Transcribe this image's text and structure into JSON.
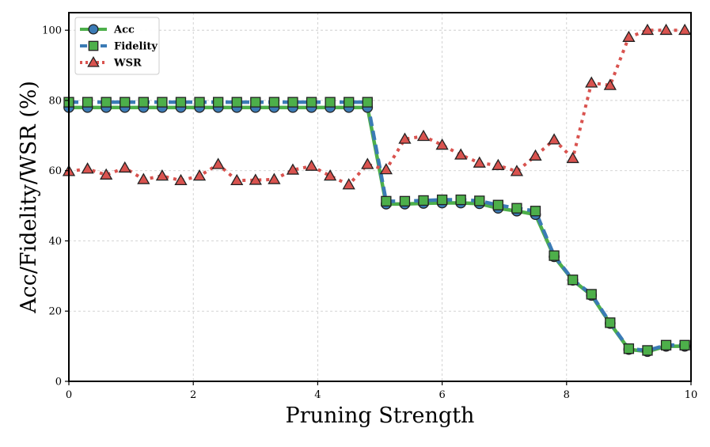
{
  "chart_data": {
    "type": "line",
    "title": "",
    "xlabel": "Pruning Strength",
    "ylabel": "Acc/Fidelity/WSR (%)",
    "xlim": [
      0,
      10
    ],
    "ylim": [
      0,
      105
    ],
    "xticks": [
      0,
      2,
      4,
      6,
      8,
      10
    ],
    "yticks": [
      0,
      20,
      40,
      60,
      80,
      100
    ],
    "grid": true,
    "legend_position": "top-left",
    "x": [
      0,
      0.3,
      0.6,
      0.9,
      1.2,
      1.5,
      1.8,
      2.1,
      2.4,
      2.7,
      3.0,
      3.3,
      3.6,
      3.9,
      4.2,
      4.5,
      4.8,
      5.1,
      5.4,
      5.7,
      6.0,
      6.3,
      6.6,
      6.9,
      7.2,
      7.5,
      7.8,
      8.1,
      8.4,
      8.7,
      9.0,
      9.3,
      9.6,
      9.9
    ],
    "series": [
      {
        "name": "Acc",
        "color": "#4daf4a",
        "marker": "circle",
        "marker_color": "#3b7bb5",
        "line_style": "solid",
        "values": [
          78,
          78,
          78,
          78,
          78,
          78,
          78,
          78,
          78,
          78,
          78,
          78,
          78,
          78,
          78,
          78,
          78,
          50.5,
          50.5,
          50.7,
          50.8,
          50.8,
          50.6,
          49.3,
          48.5,
          47.5,
          35.5,
          28.8,
          24.5,
          16.5,
          9.1,
          8.5,
          10,
          10
        ]
      },
      {
        "name": "Fidelity",
        "color": "#3b7bb5",
        "marker": "square",
        "marker_color": "#4daf4a",
        "line_style": "dashed",
        "values": [
          79.5,
          79.5,
          79.5,
          79.5,
          79.5,
          79.5,
          79.5,
          79.5,
          79.5,
          79.5,
          79.5,
          79.5,
          79.5,
          79.5,
          79.5,
          79.5,
          79.5,
          51.3,
          51.3,
          51.5,
          51.7,
          51.7,
          51.4,
          50.2,
          49.3,
          48.5,
          35.8,
          28.9,
          24.8,
          16.7,
          9.3,
          8.8,
          10.3,
          10.3
        ]
      },
      {
        "name": "WSR",
        "color": "#d9534f",
        "marker": "triangle",
        "marker_color": "#d9534f",
        "line_style": "dotted",
        "values": [
          59.8,
          60.5,
          58.8,
          60.8,
          57.5,
          58.5,
          57.2,
          58.5,
          61.8,
          57.2,
          57.3,
          57.5,
          60.2,
          61.3,
          58.5,
          56,
          61.8,
          60.3,
          69,
          69.8,
          67.3,
          64.5,
          62.2,
          61.5,
          59.8,
          64.2,
          68.8,
          63.5,
          85,
          84.3,
          98,
          100,
          100,
          100
        ]
      }
    ]
  }
}
